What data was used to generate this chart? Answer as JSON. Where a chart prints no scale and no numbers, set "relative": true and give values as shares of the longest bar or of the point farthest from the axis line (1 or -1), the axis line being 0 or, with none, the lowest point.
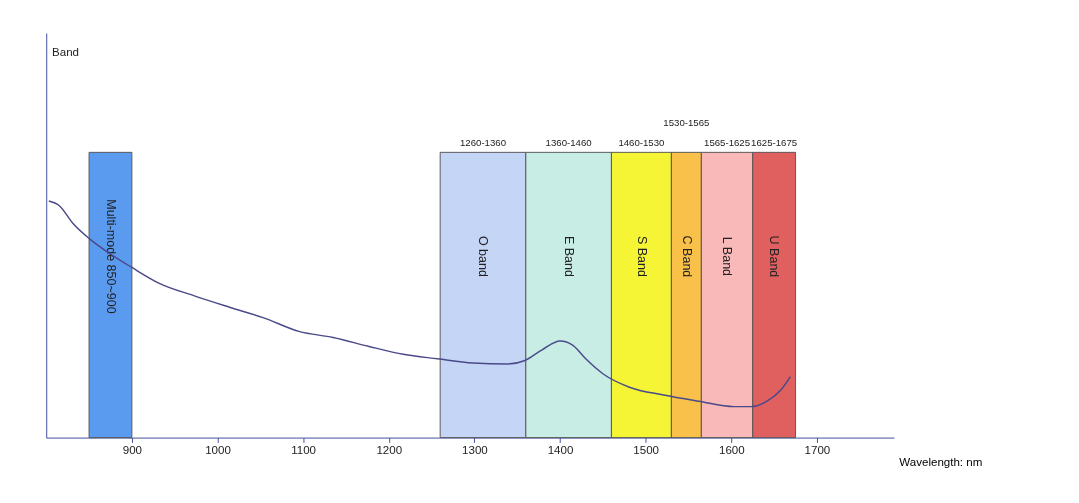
{
  "chart_data": {
    "type": "line",
    "relative": true,
    "xlabel": "Wavelength: nm",
    "xlim": [
      800,
      1790
    ],
    "xticks": [
      900,
      1000,
      1100,
      1200,
      1300,
      1400,
      1500,
      1600,
      1700
    ],
    "marker": "none",
    "line_style": "solid",
    "series": [
      {
        "color": "#4a4a8a",
        "x": [
          803,
          815,
          831,
          851,
          872,
          900,
          932,
          973,
          1014,
          1054,
          1095,
          1135,
          1176,
          1217,
          1257,
          1298,
          1339,
          1359,
          1379,
          1400,
          1415,
          1430,
          1450,
          1481,
          1521,
          1562,
          1603,
          1623,
          1643,
          1658,
          1669
        ],
        "values": [
          1.0,
          0.981,
          0.906,
          0.839,
          0.783,
          0.719,
          0.652,
          0.599,
          0.551,
          0.506,
          0.449,
          0.423,
          0.386,
          0.352,
          0.333,
          0.315,
          0.311,
          0.326,
          0.371,
          0.408,
          0.39,
          0.333,
          0.27,
          0.213,
          0.18,
          0.154,
          0.131,
          0.131,
          0.157,
          0.202,
          0.258
        ]
      }
    ],
    "bands": [
      {
        "axis": "x",
        "from": 850,
        "to": 900,
        "label": "Multi-mode 850~900",
        "color": "#5b9bef"
      },
      {
        "axis": "x",
        "from": 1260,
        "to": 1360,
        "label": "O band",
        "color": "#c5d5f5"
      },
      {
        "axis": "x",
        "from": 1360,
        "to": 1460,
        "label": "E Band",
        "color": "#c8ede4"
      },
      {
        "axis": "x",
        "from": 1460,
        "to": 1530,
        "label": "S Band",
        "color": "#f5f536"
      },
      {
        "axis": "x",
        "from": 1530,
        "to": 1565,
        "label": "C Band",
        "color": "#f9c04a"
      },
      {
        "axis": "x",
        "from": 1565,
        "to": 1625,
        "label": "L Band",
        "color": "#f9b9b9"
      },
      {
        "axis": "x",
        "from": 1625,
        "to": 1675,
        "label": "U Band",
        "color": "#e06060"
      }
    ],
    "annotations": [
      "Band",
      "1260-1360",
      "1360-1460",
      "1460-1530",
      "1530-1565",
      "1565-1625",
      "1625-1675"
    ]
  }
}
